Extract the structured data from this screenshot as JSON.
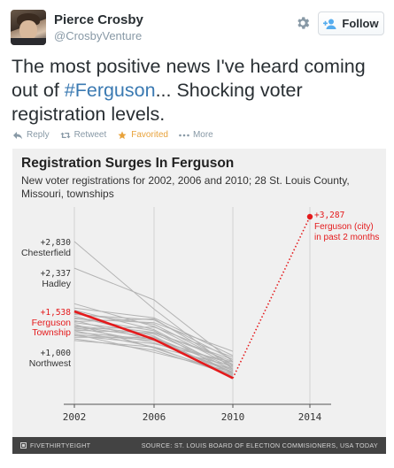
{
  "header": {
    "name": "Pierce Crosby",
    "handle": "@CrosbyVenture",
    "follow_label": "Follow"
  },
  "tweet": {
    "text_before": "The most positive news I've heard coming out of ",
    "hashtag": "#Ferguson",
    "text_after": "... Shocking voter registration levels."
  },
  "actions": {
    "reply": "Reply",
    "retweet": "Retweet",
    "favorited": "Favorited",
    "more": "More"
  },
  "chart_data": {
    "type": "line",
    "title": "Registration Surges In Ferguson",
    "subtitle": "New voter registrations for 2002, 2006 and 2010; 28 St. Louis County, Missouri, townships",
    "x": [
      "2002",
      "2006",
      "2010",
      "2014"
    ],
    "annotations": {
      "chesterfield_value": "+2,830",
      "chesterfield_name": "Chesterfield",
      "hadley_value": "+2,337",
      "hadley_name": "Hadley",
      "ferguson_twp_value": "+1,538",
      "ferguson_twp_name_1": "Ferguson",
      "ferguson_twp_name_2": "Township",
      "northwest_value": "+1,000",
      "northwest_name": "Northwest",
      "ferguson_city_value": "+3,287",
      "ferguson_city_name": "Ferguson (city)",
      "ferguson_city_note": "in past 2 months"
    },
    "highlight_series": {
      "name": "Ferguson Township",
      "values": [
        1538,
        1020,
        305
      ]
    },
    "ferguson_city_point": {
      "x": "2014",
      "value": 3287
    },
    "gray_series": [
      [
        2830,
        1580,
        470
      ],
      [
        2337,
        1750,
        610
      ],
      [
        1680,
        1260,
        520
      ],
      [
        1600,
        1420,
        720
      ],
      [
        1560,
        1200,
        440
      ],
      [
        1500,
        1300,
        560
      ],
      [
        1450,
        1080,
        330
      ],
      [
        1400,
        1330,
        800
      ],
      [
        1370,
        1000,
        400
      ],
      [
        1330,
        1150,
        610
      ],
      [
        1300,
        860,
        380
      ],
      [
        1270,
        1120,
        500
      ],
      [
        1240,
        960,
        450
      ],
      [
        1210,
        1250,
        690
      ],
      [
        1180,
        880,
        340
      ],
      [
        1150,
        1020,
        560
      ],
      [
        1120,
        780,
        420
      ],
      [
        1090,
        940,
        600
      ],
      [
        1060,
        1060,
        470
      ],
      [
        1030,
        820,
        360
      ],
      [
        1000,
        880,
        530
      ],
      [
        1480,
        1380,
        650
      ],
      [
        1420,
        1180,
        380
      ],
      [
        1350,
        1400,
        540
      ],
      [
        1260,
        1060,
        300
      ],
      [
        1190,
        1140,
        650
      ],
      [
        1110,
        1000,
        420
      ]
    ],
    "colors": {
      "highlight": "#e41a1c",
      "gray": "#b3b3b3",
      "background": "#f0f0f0"
    },
    "grid": true
  },
  "footer": {
    "brand": "FIVETHIRTYEIGHT",
    "source": "SOURCE: ST. LOUIS BOARD OF ELECTION COMMISIONERS, USA TODAY"
  }
}
